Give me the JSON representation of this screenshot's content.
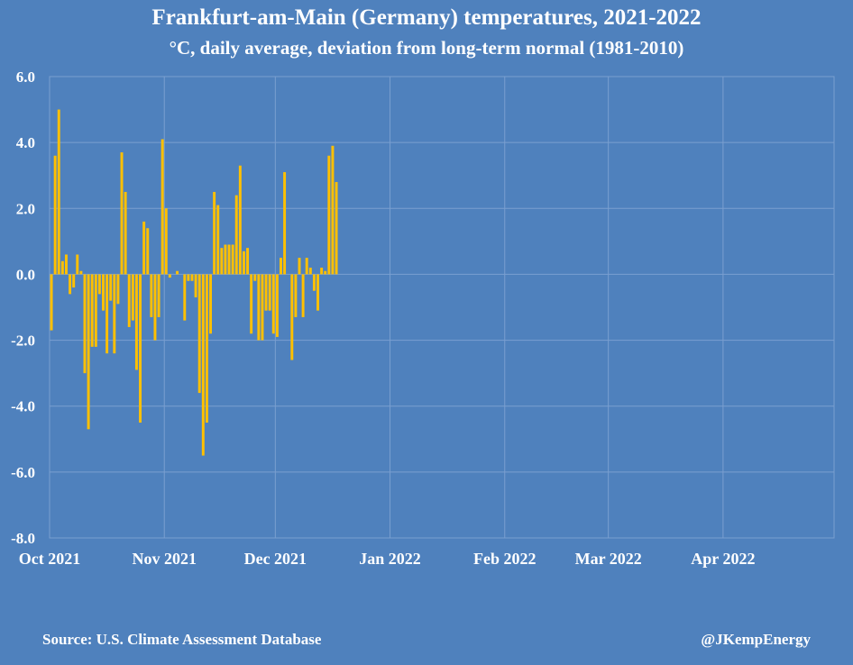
{
  "chart_data": {
    "type": "bar",
    "title": "Frankfurt-am-Main (Germany) temperatures, 2021-2022",
    "subtitle": "°C, daily average, deviation from long-term normal (1981-2010)",
    "xlabel": "",
    "ylabel": "",
    "ylim": [
      -8,
      6
    ],
    "yticks": [
      "6.0",
      "4.0",
      "2.0",
      "0.0",
      "-2.0",
      "-4.0",
      "-6.0",
      "-8.0"
    ],
    "xticks": [
      "Oct 2021",
      "Nov 2021",
      "Dec 2021",
      "Jan 2022",
      "Feb 2022",
      "Mar 2022",
      "Apr 2022"
    ],
    "grid": true,
    "bar_color": "#ffc000",
    "x_start": "2021-10-01",
    "values": [
      -1.7,
      3.6,
      5.0,
      0.4,
      0.6,
      -0.6,
      -0.4,
      0.6,
      0.1,
      -3.0,
      -4.7,
      -2.2,
      -2.2,
      -0.6,
      -1.1,
      -2.4,
      -0.8,
      -2.4,
      -0.9,
      3.7,
      2.5,
      -1.6,
      -1.4,
      -2.9,
      -4.5,
      1.6,
      1.4,
      -1.3,
      -2.0,
      -1.3,
      4.1,
      2.0,
      -0.1,
      0.0,
      0.1,
      0.0,
      -1.4,
      -0.2,
      -0.2,
      -0.7,
      -3.6,
      -5.5,
      -4.5,
      -1.8,
      2.5,
      2.1,
      0.8,
      0.9,
      0.9,
      0.9,
      2.4,
      3.3,
      0.7,
      0.8,
      -1.8,
      -0.2,
      -2.0,
      -2.0,
      -1.1,
      -1.1,
      -1.8,
      -1.9,
      0.5,
      3.1,
      0.0,
      -2.6,
      -1.3,
      0.5,
      -1.3,
      0.5,
      0.2,
      -0.5,
      -1.1,
      0.2,
      0.1,
      3.6,
      3.9,
      2.8
    ]
  },
  "footer": {
    "source": "Source: U.S. Climate Assessment Database",
    "handle": "@JKempEnergy"
  },
  "colors": {
    "background": "#4f81bd",
    "bar": "#ffc000",
    "grid": "#7a9fd0"
  }
}
